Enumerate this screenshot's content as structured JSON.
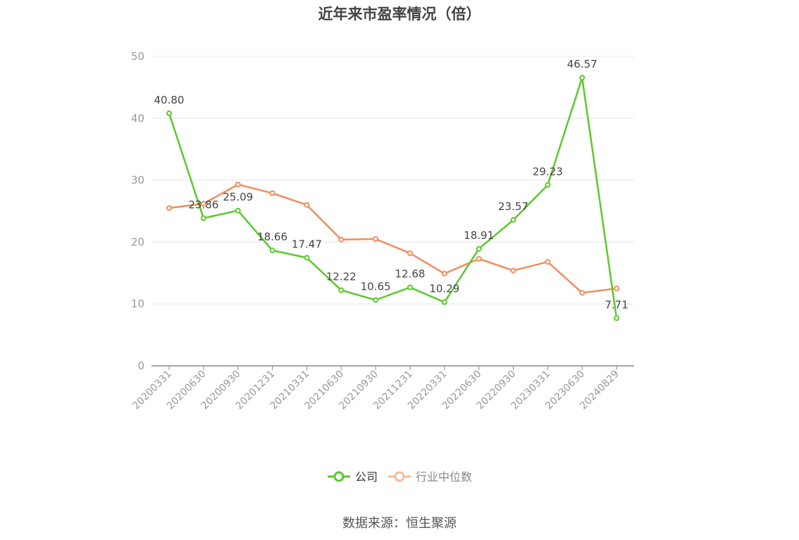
{
  "chart_data": {
    "type": "line",
    "title": "近年来市盈率情况（倍）",
    "x": [
      "20200331",
      "20200630",
      "20200930",
      "20201231",
      "20210331",
      "20210630",
      "20210930",
      "20211231",
      "20220331",
      "20220630",
      "20220930",
      "20230331",
      "20230630",
      "20240829"
    ],
    "series": [
      {
        "name": "公司",
        "color": "#5cc82d",
        "values": [
          40.8,
          23.86,
          25.09,
          18.66,
          17.47,
          12.22,
          10.65,
          12.68,
          10.29,
          18.91,
          23.57,
          29.23,
          46.57,
          7.71
        ],
        "labels": [
          "40.80",
          "23.86",
          "25.09",
          "18.66",
          "17.47",
          "12.22",
          "10.65",
          "12.68",
          "10.29",
          "18.91",
          "23.57",
          "29.23",
          "46.57",
          "7.71"
        ]
      },
      {
        "name": "行业中位数",
        "color": "#f28c5c",
        "legend_color": "#f8b9a0",
        "values": [
          25.5,
          26.2,
          29.3,
          27.9,
          26.0,
          20.4,
          20.5,
          18.2,
          14.9,
          17.3,
          15.4,
          16.8,
          11.8,
          12.5
        ]
      }
    ],
    "yticks": [
      "0",
      "10",
      "20",
      "30",
      "40",
      "50"
    ],
    "ylim": [
      0,
      50
    ],
    "grid": true,
    "legend": "bottom-center"
  },
  "source": "数据来源：恒生聚源"
}
